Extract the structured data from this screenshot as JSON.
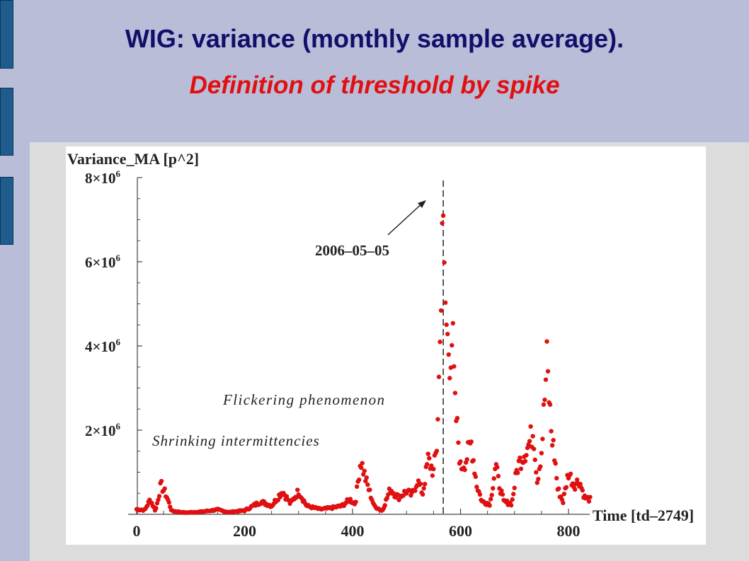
{
  "slide": {
    "title": "WIG: variance (monthly sample average).",
    "subtitle": "Definition of threshold by spike"
  },
  "colors": {
    "background": "#b9bdd8",
    "title": "#10106a",
    "subtitle": "#e01010",
    "accent_bar": "#1e5c8e",
    "points": "#e01010"
  },
  "chart_data": {
    "type": "scatter",
    "ylabel": "Variance_MA [p^2]",
    "xlabel": "Time [td–2749]",
    "xlim": [
      0,
      840
    ],
    "ylim": [
      0,
      8000000
    ],
    "x_ticks": [
      {
        "value": 0,
        "label": "0"
      },
      {
        "value": 200,
        "label": "200"
      },
      {
        "value": 400,
        "label": "400"
      },
      {
        "value": 600,
        "label": "600"
      },
      {
        "value": 800,
        "label": "800"
      }
    ],
    "y_ticks": [
      {
        "value": 2000000,
        "mantissa": "2",
        "exponent": "6"
      },
      {
        "value": 4000000,
        "mantissa": "4",
        "exponent": "6"
      },
      {
        "value": 6000000,
        "mantissa": "6",
        "exponent": "6"
      },
      {
        "value": 8000000,
        "mantissa": "8",
        "exponent": "6"
      }
    ],
    "threshold": {
      "x": 568,
      "label": "2006–05–05"
    },
    "annotations": {
      "flickering": "Flickering phenomenon",
      "shrinking": "Shrinking intermittencies"
    },
    "series_profile": [
      [
        0,
        120000
      ],
      [
        15,
        100000
      ],
      [
        25,
        350000
      ],
      [
        35,
        80000
      ],
      [
        45,
        700000
      ],
      [
        55,
        450000
      ],
      [
        65,
        80000
      ],
      [
        90,
        40000
      ],
      [
        120,
        60000
      ],
      [
        150,
        110000
      ],
      [
        170,
        50000
      ],
      [
        200,
        90000
      ],
      [
        230,
        300000
      ],
      [
        250,
        200000
      ],
      [
        270,
        550000
      ],
      [
        285,
        250000
      ],
      [
        300,
        550000
      ],
      [
        315,
        200000
      ],
      [
        340,
        120000
      ],
      [
        360,
        150000
      ],
      [
        380,
        200000
      ],
      [
        395,
        350000
      ],
      [
        405,
        250000
      ],
      [
        415,
        1300000
      ],
      [
        425,
        800000
      ],
      [
        440,
        200000
      ],
      [
        455,
        80000
      ],
      [
        470,
        600000
      ],
      [
        485,
        400000
      ],
      [
        500,
        550000
      ],
      [
        510,
        450000
      ],
      [
        520,
        800000
      ],
      [
        530,
        500000
      ],
      [
        540,
        1300000
      ],
      [
        550,
        1000000
      ],
      [
        556,
        1600000
      ],
      [
        562,
        4000000
      ],
      [
        566,
        7200000
      ],
      [
        570,
        5500000
      ],
      [
        575,
        4200000
      ],
      [
        580,
        3800000
      ],
      [
        585,
        4300000
      ],
      [
        590,
        2500000
      ],
      [
        595,
        1900000
      ],
      [
        600,
        1100000
      ],
      [
        610,
        1300000
      ],
      [
        620,
        1700000
      ],
      [
        630,
        700000
      ],
      [
        640,
        300000
      ],
      [
        655,
        250000
      ],
      [
        665,
        1200000
      ],
      [
        670,
        800000
      ],
      [
        680,
        300000
      ],
      [
        695,
        250000
      ],
      [
        705,
        1100000
      ],
      [
        715,
        1400000
      ],
      [
        725,
        1600000
      ],
      [
        735,
        2000000
      ],
      [
        742,
        800000
      ],
      [
        750,
        1500000
      ],
      [
        760,
        3600000
      ],
      [
        768,
        2000000
      ],
      [
        775,
        1300000
      ],
      [
        780,
        600000
      ],
      [
        790,
        300000
      ],
      [
        800,
        1000000
      ],
      [
        810,
        700000
      ],
      [
        820,
        800000
      ],
      [
        830,
        400000
      ],
      [
        840,
        350000
      ]
    ]
  }
}
